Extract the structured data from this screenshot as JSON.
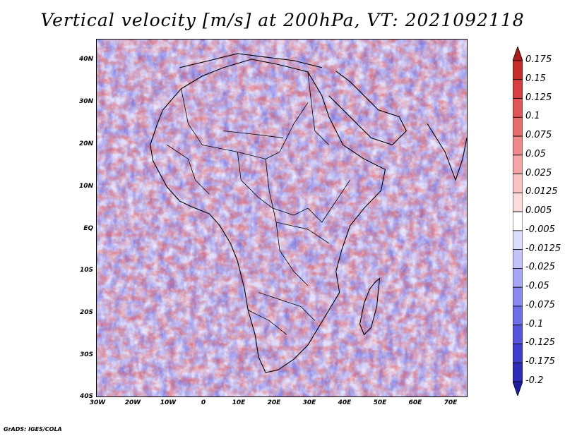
{
  "title": "Vertical velocity [m/s] at 200hPa, VT: 2021092118",
  "map": {
    "lat_labels": [
      "40N",
      "30N",
      "20N",
      "10N",
      "EQ",
      "10S",
      "20S",
      "30S",
      "40S"
    ],
    "lon_labels": [
      "30W",
      "20W",
      "10W",
      "0",
      "10E",
      "20E",
      "30E",
      "40E",
      "50E",
      "60E",
      "70E"
    ],
    "lat_range": [
      -40,
      45
    ],
    "lon_range": [
      -30,
      75
    ],
    "lat_ticks": [
      40,
      30,
      20,
      10,
      0,
      -10,
      -20,
      -30,
      -40
    ],
    "lon_ticks": [
      -30,
      -20,
      -10,
      0,
      10,
      20,
      30,
      40,
      50,
      60,
      70
    ]
  },
  "colorbar": {
    "levels": [
      "0.175",
      "0.15",
      "0.125",
      "0.1",
      "0.075",
      "0.05",
      "0.025",
      "0.0125",
      "0.005",
      "-0.005",
      "-0.0125",
      "-0.025",
      "-0.05",
      "-0.075",
      "-0.1",
      "-0.125",
      "-0.175",
      "-0.2"
    ],
    "colors": [
      "#b11d1d",
      "#c52d2d",
      "#d44040",
      "#e05656",
      "#e86e6e",
      "#ef8a8a",
      "#f4a6a6",
      "#f8c3c3",
      "#fbdcdc",
      "#ffffff",
      "#dcdcfb",
      "#c3c3f7",
      "#a6a6f2",
      "#8a8aee",
      "#6e6ee6",
      "#5656dd",
      "#4040cc",
      "#2d2db8",
      "#1d1da4"
    ]
  },
  "credit": "GrADS: IGES/COLA"
}
